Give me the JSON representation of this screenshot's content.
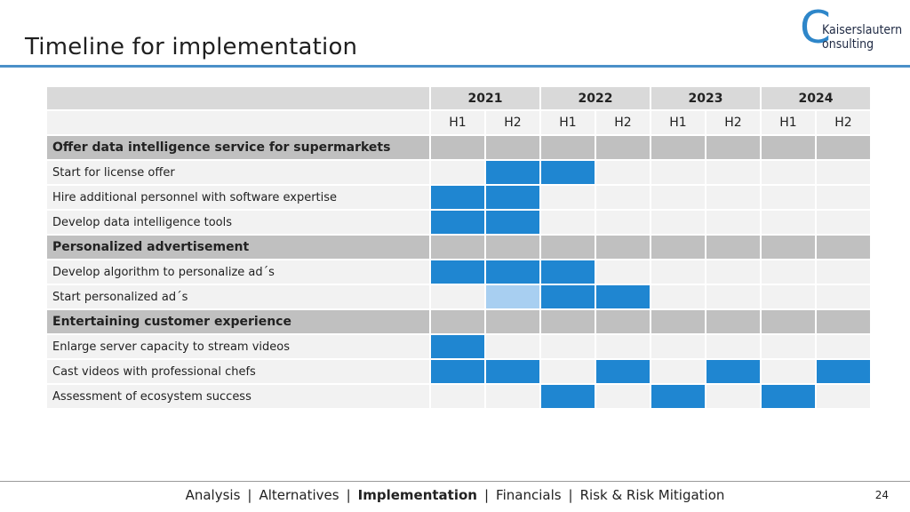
{
  "title": "Timeline for implementation",
  "logo": {
    "letter": "C",
    "line1": "Kaiserslautern",
    "line2": "onsulting"
  },
  "accent_color": "#1f86d1",
  "years": [
    "2021",
    "2022",
    "2023",
    "2024"
  ],
  "halves": [
    "H1",
    "H2",
    "H1",
    "H2",
    "H1",
    "H2",
    "H1",
    "H2"
  ],
  "groups": [
    {
      "name": "Offer data intelligence service for supermarkets",
      "tasks": [
        {
          "name": "Start for license offer",
          "cells": [
            0,
            1,
            1,
            0,
            0,
            0,
            0,
            0
          ]
        },
        {
          "name": "Hire additional personnel with software expertise",
          "cells": [
            1,
            1,
            0,
            0,
            0,
            0,
            0,
            0
          ]
        },
        {
          "name": "Develop data intelligence tools",
          "cells": [
            1,
            1,
            0,
            0,
            0,
            0,
            0,
            0
          ]
        }
      ]
    },
    {
      "name": "Personalized advertisement",
      "tasks": [
        {
          "name": "Develop algorithm to personalize ad´s",
          "cells": [
            1,
            1,
            1,
            0,
            0,
            0,
            0,
            0
          ]
        },
        {
          "name": "Start personalized ad´s",
          "cells": [
            0,
            2,
            1,
            1,
            0,
            0,
            0,
            0
          ]
        }
      ]
    },
    {
      "name": "Entertaining customer experience",
      "tasks": [
        {
          "name": "Enlarge server capacity to stream videos",
          "cells": [
            1,
            0,
            0,
            0,
            0,
            0,
            0,
            0
          ]
        },
        {
          "name": "Cast videos with professional chefs",
          "cells": [
            1,
            1,
            0,
            1,
            0,
            1,
            0,
            1
          ]
        },
        {
          "name": "Assessment of ecosystem success",
          "cells": [
            0,
            0,
            1,
            0,
            1,
            0,
            1,
            0
          ]
        }
      ]
    }
  ],
  "footer": {
    "items": [
      "Analysis",
      "Alternatives",
      "Implementation",
      "Financials",
      "Risk & Risk Mitigation"
    ],
    "active": "Implementation",
    "separator": "|"
  },
  "page_number": "24"
}
